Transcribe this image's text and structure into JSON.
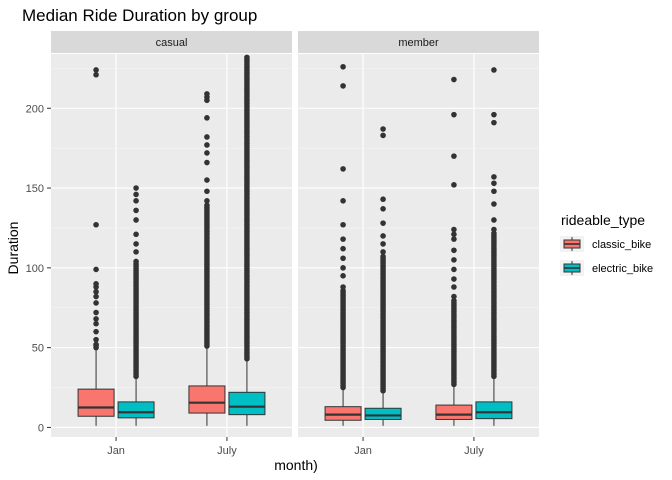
{
  "chart_data": {
    "type": "boxplot",
    "title": "Median Ride Duration by group",
    "xlabel": "month)",
    "ylabel": "Duration",
    "facet_variable": "member_casual",
    "facets": [
      "casual",
      "member"
    ],
    "categories": [
      "Jan",
      "July"
    ],
    "ylim": [
      -6,
      234
    ],
    "yticks": [
      0,
      50,
      100,
      150,
      200
    ],
    "grid": true,
    "legend": {
      "title": "rideable_type",
      "position": "right",
      "entries": [
        "classic_bike",
        "electric_bike"
      ]
    },
    "colors": {
      "classic_bike": "#F8766D",
      "electric_bike": "#00BFC4",
      "panel_bg": "#EBEBEB",
      "strip_bg": "#D9D9D9",
      "grid": "#FFFFFF",
      "outline": "#333333"
    },
    "series": [
      {
        "name": "classic_bike",
        "facet": "casual",
        "month": "Jan",
        "low": 1,
        "q1": 7,
        "median": 12.5,
        "q3": 24,
        "high": 50,
        "outliers": [
          52,
          55,
          60,
          65,
          68,
          72,
          78,
          82,
          85,
          88,
          90,
          99,
          127,
          221,
          224
        ],
        "dense_outliers": [
          50,
          52
        ]
      },
      {
        "name": "electric_bike",
        "facet": "casual",
        "month": "Jan",
        "low": 1,
        "q1": 6,
        "median": 9.5,
        "q3": 16,
        "high": 32,
        "outliers": [
          104,
          110,
          115,
          121,
          130,
          136,
          142,
          146,
          150
        ],
        "dense_outliers": [
          32,
          103
        ]
      },
      {
        "name": "classic_bike",
        "facet": "casual",
        "month": "July",
        "low": 1,
        "q1": 9,
        "median": 15.5,
        "q3": 26,
        "high": 51,
        "outliers": [
          142,
          148,
          155,
          166,
          172,
          177,
          182,
          194,
          205,
          207,
          209
        ],
        "dense_outliers": [
          51,
          140
        ]
      },
      {
        "name": "electric_bike",
        "facet": "casual",
        "month": "July",
        "low": 1,
        "q1": 8,
        "median": 13,
        "q3": 22,
        "high": 43,
        "outliers": [],
        "dense_outliers": [
          43,
          232
        ]
      },
      {
        "name": "classic_bike",
        "facet": "member",
        "month": "Jan",
        "low": 1,
        "q1": 4.5,
        "median": 8,
        "q3": 13,
        "high": 25,
        "outliers": [
          88,
          95,
          100,
          106,
          112,
          118,
          127,
          142,
          162,
          214,
          226
        ],
        "dense_outliers": [
          25,
          86
        ]
      },
      {
        "name": "electric_bike",
        "facet": "member",
        "month": "Jan",
        "low": 1,
        "q1": 5,
        "median": 7.5,
        "q3": 12,
        "high": 23,
        "outliers": [
          110,
          115,
          120,
          128,
          137,
          143,
          183,
          187
        ],
        "dense_outliers": [
          23,
          108
        ]
      },
      {
        "name": "classic_bike",
        "facet": "member",
        "month": "July",
        "low": 1,
        "q1": 5,
        "median": 8,
        "q3": 14,
        "high": 27,
        "outliers": [
          82,
          88,
          93,
          99,
          105,
          111,
          118,
          121,
          124,
          152,
          170,
          196,
          218
        ],
        "dense_outliers": [
          27,
          80
        ]
      },
      {
        "name": "electric_bike",
        "facet": "member",
        "month": "July",
        "low": 1,
        "q1": 5.5,
        "median": 9.5,
        "q3": 16,
        "high": 32,
        "outliers": [
          124,
          130,
          140,
          148,
          153,
          157,
          191,
          196,
          224
        ],
        "dense_outliers": [
          32,
          122
        ]
      }
    ]
  }
}
